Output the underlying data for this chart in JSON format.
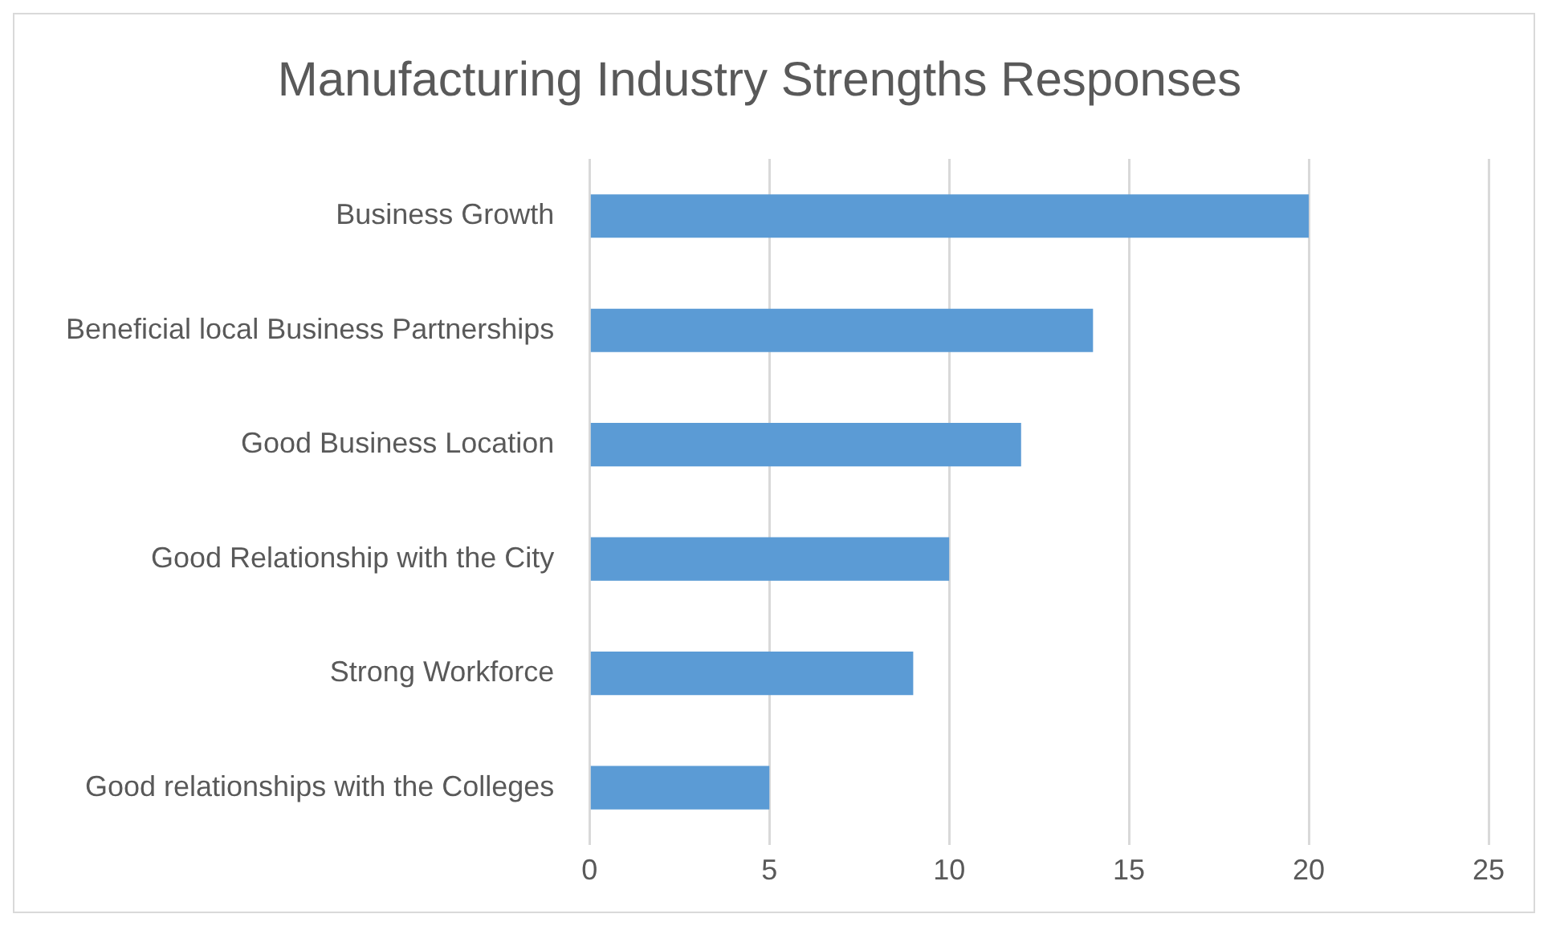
{
  "chart_data": {
    "type": "bar",
    "orientation": "horizontal",
    "title": "Manufacturing Industry Strengths Responses",
    "categories": [
      "Business Growth",
      "Beneficial local Business Partnerships",
      "Good Business Location",
      "Good Relationship with the City",
      "Strong Workforce",
      "Good relationships with the Colleges"
    ],
    "values": [
      20,
      14,
      12,
      10,
      9,
      5
    ],
    "color": "#5b9bd5",
    "xlim": [
      0,
      25
    ],
    "xticks": [
      0,
      5,
      10,
      15,
      20,
      25
    ],
    "grid": "x"
  }
}
